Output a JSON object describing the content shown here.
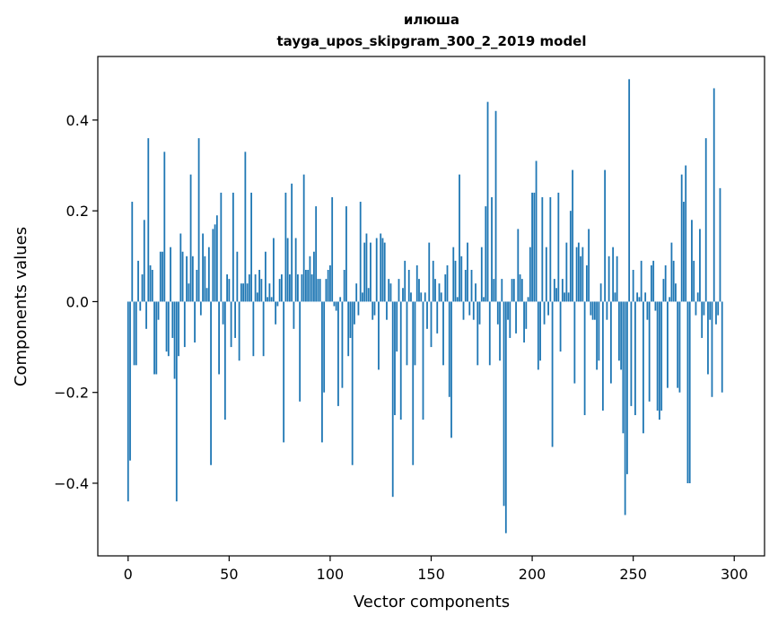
{
  "chart_data": {
    "type": "bar",
    "title": "илюша",
    "subtitle": "tayga_upos_skipgram_300_2_2019 model",
    "xlabel": "Vector components",
    "ylabel": "Components values",
    "xlim": [
      -15,
      315
    ],
    "ylim": [
      -0.56,
      0.54
    ],
    "xticks": [
      0,
      50,
      100,
      150,
      200,
      250,
      300
    ],
    "yticks": [
      -0.4,
      -0.2,
      0.0,
      0.2,
      0.4
    ],
    "ytick_labels": [
      "−0.4",
      "−0.2",
      "0.0",
      "0.2",
      "0.4"
    ],
    "grid": false,
    "bar_color": "#1f77b4",
    "series": [
      {
        "values": [
          -0.44,
          -0.35,
          0.22,
          -0.14,
          -0.14,
          0.09,
          -0.02,
          0.06,
          0.18,
          -0.06,
          0.36,
          0.08,
          0.07,
          -0.16,
          -0.16,
          -0.04,
          0.11,
          0.11,
          0.33,
          -0.11,
          -0.12,
          0.12,
          -0.08,
          -0.17,
          -0.44,
          -0.12,
          0.15,
          0.11,
          -0.1,
          0.1,
          0.04,
          0.28,
          0.1,
          -0.09,
          0.07,
          0.36,
          -0.03,
          0.15,
          0.1,
          0.03,
          0.12,
          -0.36,
          0.16,
          0.17,
          0.19,
          -0.16,
          0.24,
          -0.05,
          -0.26,
          0.06,
          0.05,
          -0.1,
          0.24,
          -0.08,
          0.11,
          -0.13,
          0.04,
          0.04,
          0.33,
          0.04,
          0.06,
          0.24,
          -0.12,
          0.06,
          0.02,
          0.07,
          0.05,
          -0.12,
          0.11,
          0.01,
          0.04,
          0.01,
          0.14,
          -0.05,
          -0.01,
          0.05,
          0.06,
          -0.31,
          0.24,
          0.14,
          0.06,
          0.26,
          -0.06,
          0.14,
          0.06,
          -0.22,
          0.06,
          0.28,
          0.07,
          0.07,
          0.1,
          0.06,
          0.11,
          0.21,
          0.05,
          0.05,
          -0.31,
          -0.2,
          0.05,
          0.07,
          0.08,
          0.23,
          -0.01,
          -0.02,
          -0.23,
          0.01,
          -0.19,
          0.07,
          0.21,
          -0.12,
          -0.08,
          -0.36,
          -0.05,
          0.04,
          -0.03,
          0.22,
          0.02,
          0.13,
          0.15,
          0.03,
          0.13,
          -0.04,
          -0.03,
          0.14,
          -0.15,
          0.15,
          0.14,
          0.13,
          -0.04,
          0.05,
          0.04,
          -0.43,
          -0.25,
          -0.11,
          0.05,
          -0.26,
          0.03,
          0.09,
          -0.14,
          0.07,
          0.02,
          -0.36,
          -0.14,
          0.08,
          0.05,
          0.02,
          -0.26,
          0.02,
          -0.06,
          0.13,
          -0.1,
          0.09,
          0.05,
          -0.07,
          0.04,
          0.02,
          -0.14,
          0.06,
          0.08,
          -0.21,
          -0.3,
          0.12,
          0.09,
          0.01,
          0.28,
          0.1,
          -0.04,
          0.07,
          0.13,
          -0.03,
          0.07,
          -0.04,
          0.04,
          -0.14,
          -0.05,
          0.12,
          0.01,
          0.21,
          0.44,
          -0.14,
          0.23,
          0.05,
          0.42,
          -0.05,
          -0.13,
          0.05,
          -0.45,
          -0.51,
          -0.04,
          -0.08,
          0.05,
          0.05,
          -0.07,
          0.16,
          0.06,
          0.05,
          -0.09,
          -0.06,
          0.01,
          0.12,
          0.24,
          0.24,
          0.31,
          -0.15,
          -0.13,
          0.23,
          -0.05,
          0.12,
          -0.03,
          0.23,
          -0.32,
          0.05,
          0.03,
          0.24,
          -0.11,
          0.05,
          0.02,
          0.13,
          0.02,
          0.2,
          0.29,
          -0.18,
          0.12,
          0.13,
          0.1,
          0.12,
          -0.25,
          0.08,
          0.16,
          -0.03,
          -0.04,
          -0.04,
          -0.15,
          -0.13,
          0.04,
          -0.24,
          0.29,
          -0.04,
          0.1,
          -0.18,
          0.12,
          0.02,
          0.1,
          -0.13,
          -0.15,
          -0.29,
          -0.47,
          -0.38,
          0.49,
          -0.23,
          0.07,
          -0.25,
          0.02,
          0.01,
          0.09,
          -0.29,
          0.02,
          -0.04,
          -0.22,
          0.08,
          0.09,
          -0.02,
          -0.24,
          -0.26,
          -0.24,
          0.05,
          0.08,
          -0.19,
          0.01,
          0.13,
          0.09,
          0.04,
          -0.19,
          -0.2,
          0.28,
          0.22,
          0.3,
          -0.4,
          -0.4,
          0.18,
          0.09,
          -0.03,
          0.02,
          0.16,
          -0.08,
          -0.03,
          0.36,
          -0.16,
          -0.04,
          -0.21,
          0.47,
          -0.05,
          -0.03,
          0.25,
          -0.2
        ]
      }
    ]
  }
}
